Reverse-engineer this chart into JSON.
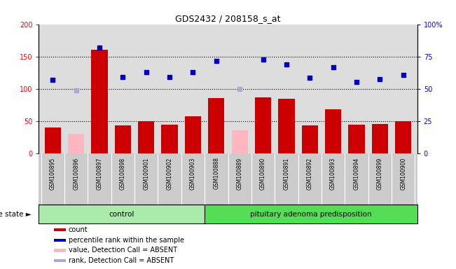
{
  "title": "GDS2432 / 208158_s_at",
  "samples": [
    "GSM100895",
    "GSM100896",
    "GSM100897",
    "GSM100898",
    "GSM100901",
    "GSM100902",
    "GSM100903",
    "GSM100888",
    "GSM100889",
    "GSM100890",
    "GSM100891",
    "GSM100892",
    "GSM100893",
    "GSM100894",
    "GSM100899",
    "GSM100900"
  ],
  "count_values": [
    40,
    30,
    160,
    43,
    50,
    44,
    57,
    85,
    35,
    87,
    84,
    43,
    68,
    44,
    45,
    50
  ],
  "count_absent": [
    false,
    true,
    false,
    false,
    false,
    false,
    false,
    false,
    true,
    false,
    false,
    false,
    false,
    false,
    false,
    false
  ],
  "percentile_values": [
    114,
    97,
    164,
    118,
    126,
    118,
    126,
    143,
    100,
    145,
    138,
    117,
    133,
    110,
    115,
    121
  ],
  "percentile_absent": [
    false,
    false,
    false,
    false,
    false,
    false,
    false,
    false,
    true,
    false,
    false,
    false,
    false,
    false,
    false,
    false
  ],
  "percentile_absent2": [
    false,
    true,
    false,
    false,
    false,
    false,
    false,
    false,
    false,
    false,
    false,
    false,
    false,
    false,
    false,
    false
  ],
  "control_count": 7,
  "disease_count": 9,
  "ylim_left": [
    0,
    200
  ],
  "yticks_left": [
    0,
    50,
    100,
    150,
    200
  ],
  "yticks_right": [
    0,
    25,
    50,
    75,
    100
  ],
  "bar_color_normal": "#CC0000",
  "bar_color_absent": "#FFB6C1",
  "dot_color_normal": "#0000BB",
  "dot_color_absent": "#AAAACC",
  "plot_bg": "#DDDDDD",
  "label_bg": "#CCCCCC",
  "control_bg": "#AAEAAA",
  "disease_bg": "#55DD55",
  "legend_items": [
    {
      "label": "count",
      "color": "#CC0000"
    },
    {
      "label": "percentile rank within the sample",
      "color": "#0000BB"
    },
    {
      "label": "value, Detection Call = ABSENT",
      "color": "#FFB6C1"
    },
    {
      "label": "rank, Detection Call = ABSENT",
      "color": "#AAAACC"
    }
  ]
}
